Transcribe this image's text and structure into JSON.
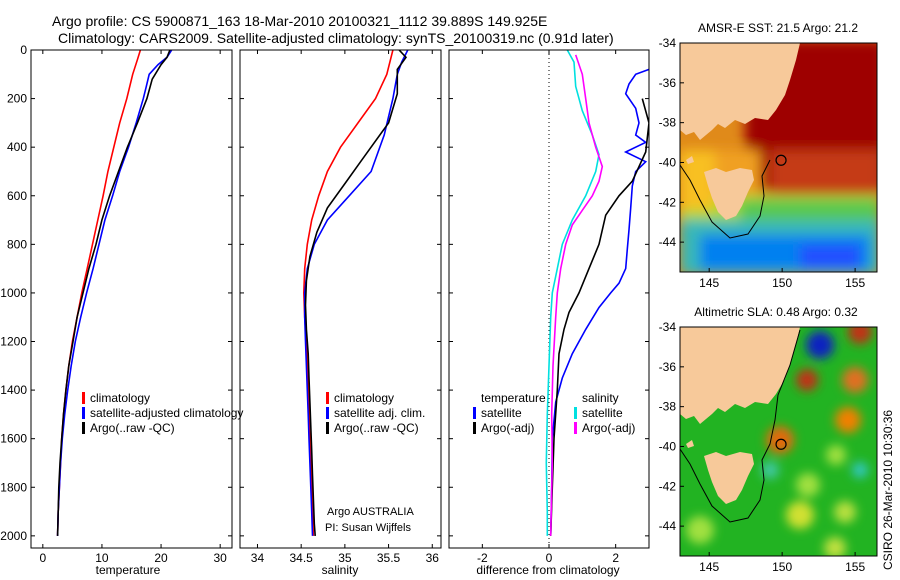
{
  "header": {
    "title_line1": "Argo profile: CS 5900871_163 18-Mar-2010 20100321_1112 39.889S 149.925E",
    "title_line2": "Climatology: CARS2009. Satellite-adjusted climatology: synTS_20100319.nc (0.91d later)"
  },
  "chart_data": [
    {
      "type": "line",
      "panel": "temperature",
      "xlabel": "temperature",
      "ylabel": "",
      "xlim": [
        -2,
        32
      ],
      "ylim": [
        2050,
        0
      ],
      "y_inverted": true,
      "xticks": [
        0,
        10,
        20,
        30
      ],
      "yticks": [
        0,
        200,
        400,
        600,
        800,
        1000,
        1200,
        1400,
        1600,
        1800,
        2000
      ],
      "legend_position": "lower-right",
      "series": [
        {
          "name": "climatology",
          "color": "#ff0000",
          "points": [
            [
              16.5,
              0
            ],
            [
              16.0,
              40
            ],
            [
              15.2,
              100
            ],
            [
              14.2,
              200
            ],
            [
              13.0,
              300
            ],
            [
              12.0,
              400
            ],
            [
              11.0,
              500
            ],
            [
              10.2,
              600
            ],
            [
              9.3,
              700
            ],
            [
              8.4,
              800
            ],
            [
              7.5,
              900
            ],
            [
              6.6,
              1000
            ],
            [
              5.8,
              1100
            ],
            [
              5.0,
              1200
            ],
            [
              4.4,
              1300
            ],
            [
              3.9,
              1400
            ],
            [
              3.5,
              1500
            ],
            [
              3.2,
              1600
            ],
            [
              3.0,
              1700
            ],
            [
              2.8,
              1800
            ],
            [
              2.6,
              1900
            ],
            [
              2.5,
              2000
            ]
          ]
        },
        {
          "name": "satellite-adjusted climatology",
          "color": "#0000ff",
          "points": [
            [
              21.8,
              0
            ],
            [
              21.0,
              30
            ],
            [
              19.5,
              60
            ],
            [
              18.0,
              100
            ],
            [
              17.5,
              150
            ],
            [
              17.0,
              200
            ],
            [
              15.8,
              300
            ],
            [
              14.5,
              400
            ],
            [
              13.0,
              500
            ],
            [
              11.8,
              600
            ],
            [
              10.5,
              700
            ],
            [
              9.5,
              800
            ],
            [
              8.5,
              900
            ],
            [
              7.4,
              1000
            ],
            [
              6.4,
              1100
            ],
            [
              5.5,
              1200
            ],
            [
              4.8,
              1300
            ],
            [
              4.2,
              1400
            ],
            [
              3.7,
              1500
            ],
            [
              3.3,
              1600
            ],
            [
              3.0,
              1700
            ],
            [
              2.8,
              1800
            ],
            [
              2.6,
              1900
            ],
            [
              2.5,
              2000
            ]
          ]
        },
        {
          "name": "Argo(..raw -QC)",
          "color": "#000000",
          "points": [
            [
              21.5,
              0
            ],
            [
              21.0,
              30
            ],
            [
              20.0,
              60
            ],
            [
              18.5,
              120
            ],
            [
              17.6,
              200
            ],
            [
              16.0,
              300
            ],
            [
              14.3,
              400
            ],
            [
              12.8,
              500
            ],
            [
              11.3,
              600
            ],
            [
              10.0,
              700
            ],
            [
              9.0,
              800
            ],
            [
              7.8,
              900
            ],
            [
              6.8,
              1000
            ],
            [
              5.8,
              1100
            ],
            [
              5.1,
              1200
            ],
            [
              4.4,
              1300
            ],
            [
              3.9,
              1400
            ],
            [
              3.5,
              1500
            ],
            [
              3.2,
              1600
            ],
            [
              2.9,
              1700
            ],
            [
              2.7,
              1800
            ],
            [
              2.6,
              1900
            ],
            [
              2.5,
              2000
            ]
          ]
        }
      ]
    },
    {
      "type": "line",
      "panel": "salinity",
      "xlabel": "salinity",
      "ylabel": "",
      "xlim": [
        33.8,
        36.1
      ],
      "ylim": [
        2050,
        0
      ],
      "y_inverted": true,
      "xticks": [
        34,
        34.5,
        35,
        35.5,
        36
      ],
      "xtick_labels": [
        "34",
        "34.5",
        "35",
        "35.5",
        "36"
      ],
      "legend_position": "lower-right",
      "series": [
        {
          "name": "climatology",
          "color": "#ff0000",
          "points": [
            [
              35.55,
              0
            ],
            [
              35.48,
              100
            ],
            [
              35.35,
              200
            ],
            [
              35.15,
              300
            ],
            [
              34.95,
              400
            ],
            [
              34.8,
              500
            ],
            [
              34.7,
              600
            ],
            [
              34.62,
              700
            ],
            [
              34.57,
              800
            ],
            [
              34.54,
              900
            ],
            [
              34.53,
              1000
            ],
            [
              34.54,
              1100
            ],
            [
              34.56,
              1200
            ],
            [
              34.57,
              1300
            ],
            [
              34.58,
              1400
            ],
            [
              34.59,
              1500
            ],
            [
              34.6,
              1600
            ],
            [
              34.61,
              1700
            ],
            [
              34.62,
              1800
            ],
            [
              34.63,
              1900
            ],
            [
              34.64,
              2000
            ]
          ]
        },
        {
          "name": "satellite adj. clim.",
          "color": "#0000ff",
          "points": [
            [
              35.72,
              0
            ],
            [
              35.65,
              50
            ],
            [
              35.6,
              100
            ],
            [
              35.55,
              200
            ],
            [
              35.45,
              350
            ],
            [
              35.3,
              500
            ],
            [
              35.05,
              600
            ],
            [
              34.8,
              700
            ],
            [
              34.65,
              800
            ],
            [
              34.57,
              900
            ],
            [
              34.54,
              1000
            ],
            [
              34.54,
              1100
            ],
            [
              34.55,
              1200
            ],
            [
              34.56,
              1300
            ],
            [
              34.57,
              1400
            ],
            [
              34.58,
              1500
            ],
            [
              34.59,
              1600
            ],
            [
              34.6,
              1700
            ],
            [
              34.61,
              1800
            ],
            [
              34.62,
              1900
            ],
            [
              34.63,
              2000
            ]
          ]
        },
        {
          "name": "Argo(..raw -QC)",
          "color": "#000000",
          "points": [
            [
              35.62,
              0
            ],
            [
              35.7,
              30
            ],
            [
              35.6,
              80
            ],
            [
              35.6,
              180
            ],
            [
              35.5,
              300
            ],
            [
              35.2,
              450
            ],
            [
              35.0,
              550
            ],
            [
              34.8,
              650
            ],
            [
              34.68,
              750
            ],
            [
              34.6,
              850
            ],
            [
              34.56,
              950
            ],
            [
              34.55,
              1050
            ],
            [
              34.56,
              1150
            ],
            [
              34.58,
              1250
            ],
            [
              34.59,
              1350
            ],
            [
              34.6,
              1450
            ],
            [
              34.61,
              1550
            ],
            [
              34.62,
              1650
            ],
            [
              34.63,
              1750
            ],
            [
              34.64,
              1850
            ],
            [
              34.65,
              1950
            ],
            [
              34.66,
              2000
            ]
          ]
        }
      ]
    },
    {
      "type": "line",
      "panel": "difference",
      "xlabel": "difference from climatology",
      "ylabel": "",
      "xlim": [
        -3,
        3
      ],
      "ylim": [
        2050,
        0
      ],
      "y_inverted": true,
      "xticks": [
        -2,
        0,
        2
      ],
      "zero_line": 0,
      "legend_position": "lower-right",
      "series": [
        {
          "name": "temperature satellite",
          "color": "#0000ff",
          "points": [
            [
              3.0,
              80
            ],
            [
              2.6,
              100
            ],
            [
              2.4,
              140
            ],
            [
              2.3,
              180
            ],
            [
              2.6,
              240
            ],
            [
              2.7,
              300
            ],
            [
              2.6,
              350
            ],
            [
              2.9,
              380
            ],
            [
              2.3,
              420
            ],
            [
              2.9,
              460
            ],
            [
              2.6,
              500
            ],
            [
              2.5,
              560
            ],
            [
              2.45,
              650
            ],
            [
              2.4,
              740
            ],
            [
              2.35,
              820
            ],
            [
              2.3,
              900
            ],
            [
              2.1,
              960
            ],
            [
              1.85,
              1000
            ],
            [
              1.5,
              1060
            ],
            [
              1.1,
              1150
            ],
            [
              0.7,
              1250
            ],
            [
              0.4,
              1350
            ],
            [
              0.2,
              1450
            ],
            [
              0.1,
              1600
            ],
            [
              0.08,
              1800
            ],
            [
              0.05,
              2000
            ]
          ]
        },
        {
          "name": "temperature Argo(-adj)",
          "color": "#000000",
          "points": [
            [
              2.8,
              200
            ],
            [
              3.0,
              300
            ],
            [
              2.9,
              420
            ],
            [
              2.7,
              480
            ],
            [
              2.5,
              540
            ],
            [
              2.1,
              600
            ],
            [
              1.7,
              680
            ],
            [
              1.5,
              800
            ],
            [
              1.2,
              900
            ],
            [
              0.9,
              1000
            ],
            [
              0.6,
              1080
            ],
            [
              0.45,
              1150
            ],
            [
              0.3,
              1250
            ],
            [
              0.25,
              1400
            ],
            [
              0.15,
              1600
            ],
            [
              0.1,
              1800
            ],
            [
              0.05,
              2000
            ]
          ]
        },
        {
          "name": "salinity satellite",
          "color": "#00e0e0",
          "points": [
            [
              0.55,
              0
            ],
            [
              0.75,
              50
            ],
            [
              0.8,
              150
            ],
            [
              1.0,
              250
            ],
            [
              1.3,
              350
            ],
            [
              1.5,
              430
            ],
            [
              1.4,
              500
            ],
            [
              1.1,
              600
            ],
            [
              0.7,
              700
            ],
            [
              0.4,
              800
            ],
            [
              0.25,
              900
            ],
            [
              0.1,
              1000
            ],
            [
              0.05,
              1100
            ],
            [
              0.0,
              1300
            ],
            [
              -0.05,
              1500
            ],
            [
              -0.08,
              1700
            ],
            [
              -0.05,
              1900
            ],
            [
              -0.05,
              2000
            ]
          ]
        },
        {
          "name": "salinity Argo(-adj)",
          "color": "#ff00ff",
          "points": [
            [
              0.8,
              20
            ],
            [
              1.0,
              100
            ],
            [
              1.1,
              200
            ],
            [
              1.2,
              300
            ],
            [
              1.4,
              400
            ],
            [
              1.6,
              480
            ],
            [
              1.5,
              540
            ],
            [
              1.3,
              600
            ],
            [
              1.0,
              660
            ],
            [
              0.7,
              720
            ],
            [
              0.5,
              800
            ],
            [
              0.35,
              900
            ],
            [
              0.25,
              1000
            ],
            [
              0.2,
              1100
            ],
            [
              0.12,
              1300
            ],
            [
              0.08,
              1500
            ],
            [
              0.1,
              1700
            ],
            [
              0.05,
              2000
            ]
          ]
        }
      ]
    },
    {
      "type": "heatmap",
      "panel": "sst_map",
      "title": "AMSR-E SST: 21.5 Argo: 21.2",
      "xlim": [
        143,
        156.5
      ],
      "ylim": [
        -45.5,
        -34
      ],
      "xticks": [
        145,
        150,
        155
      ],
      "yticks": [
        -34,
        -36,
        -38,
        -40,
        -42,
        -44
      ],
      "marker": {
        "lon": 149.925,
        "lat": -39.889
      }
    },
    {
      "type": "heatmap",
      "panel": "sla_map",
      "title": "Altimetric SLA: 0.48 Argo: 0.32",
      "xlim": [
        143,
        156.5
      ],
      "ylim": [
        -45.5,
        -34
      ],
      "xticks": [
        145,
        150,
        155
      ],
      "yticks": [
        -34,
        -36,
        -38,
        -40,
        -42,
        -44
      ],
      "marker": {
        "lon": 149.925,
        "lat": -39.889
      }
    }
  ],
  "legends": {
    "temperature": [
      "climatology",
      "satellite-adjusted climatology",
      "Argo(..raw -QC)"
    ],
    "salinity": [
      "climatology",
      "satellite adj. clim.",
      "Argo(..raw -QC)"
    ],
    "difference_headers": [
      "temperature",
      "salinity"
    ],
    "difference_left": [
      "satellite",
      "Argo(-adj)"
    ],
    "difference_right": [
      "satellite",
      "Argo(-adj)"
    ]
  },
  "credits": {
    "line1": "Argo AUSTRALIA",
    "line2": "PI: Susan Wijffels",
    "side": "CSIRO 26-Mar-2010 10:30:36"
  },
  "colors": {
    "red": "#ff0000",
    "blue": "#0000ff",
    "black": "#000000",
    "cyan": "#00e0e0",
    "magenta": "#ff00ff",
    "land": "#f7c99a"
  }
}
